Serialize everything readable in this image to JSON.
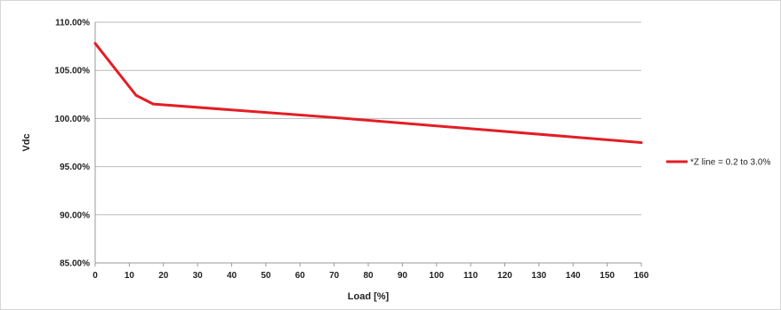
{
  "chart_data": {
    "type": "line",
    "xlabel": "Load [%]",
    "ylabel": "Vdc",
    "xlim": [
      0,
      160
    ],
    "ylim": [
      85,
      110
    ],
    "x_ticks": [
      0,
      10,
      20,
      30,
      40,
      50,
      60,
      70,
      80,
      90,
      100,
      110,
      120,
      130,
      140,
      150,
      160
    ],
    "x_tick_labels": [
      "0",
      "10",
      "20",
      "30",
      "40",
      "50",
      "60",
      "70",
      "80",
      "90",
      "100",
      "110",
      "120",
      "130",
      "140",
      "150",
      "160"
    ],
    "y_ticks": [
      85,
      90,
      95,
      100,
      105,
      110
    ],
    "y_tick_labels": [
      "85.00%",
      "90.00%",
      "95.00%",
      "100.00%",
      "105.00%",
      "110.00%"
    ],
    "grid": "horizontal",
    "legend_position": "right",
    "series": [
      {
        "name": "*Z line = 0.2 to 3.0%",
        "color": "#e31e24",
        "x": [
          0,
          12,
          17,
          70,
          160
        ],
        "y": [
          107.8,
          102.4,
          101.5,
          100.1,
          97.5
        ]
      }
    ]
  }
}
